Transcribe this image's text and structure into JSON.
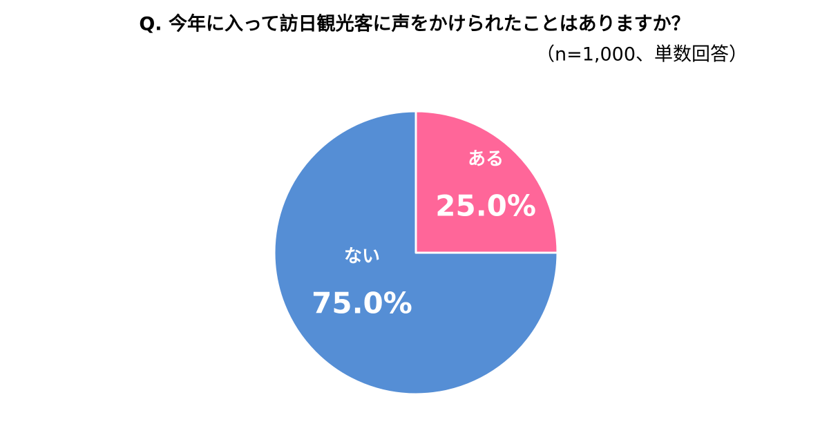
{
  "chart_data": {
    "type": "pie",
    "title": "Q. 今年に入って訪日観光客に声をかけられたことはありますか？",
    "subtitle": "（n=1,000、単数回答）",
    "categories": [
      "ある",
      "ない"
    ],
    "values": [
      25,
      75
    ],
    "value_labels": [
      "25.0%",
      "75.0%"
    ],
    "colors": [
      "#ff6699",
      "#558ed5"
    ]
  }
}
